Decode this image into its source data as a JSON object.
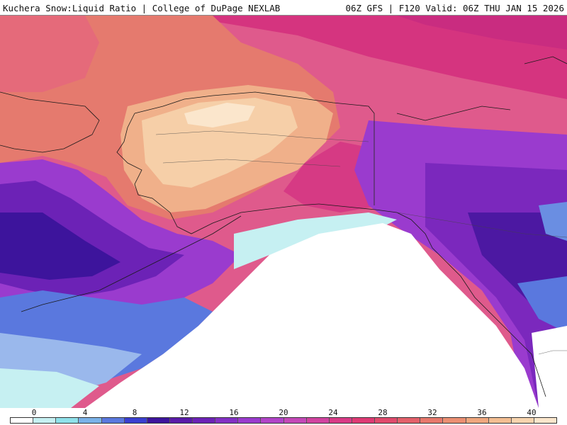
{
  "header": {
    "left_title": "Kuchera Snow:Liquid Ratio | College of DuPage NEXLAB",
    "right_title": "06Z GFS | F120 Valid: 06Z THU JAN 15 2026"
  },
  "legend": {
    "labels": [
      "0",
      "4",
      "8",
      "12",
      "16",
      "20",
      "24",
      "28",
      "32",
      "36",
      "40"
    ],
    "colors": [
      "#ffffff",
      "#c6f0f2",
      "#8fe1ea",
      "#7ab2e8",
      "#5a78de",
      "#3a3fd0",
      "#3d149c",
      "#5a1ba8",
      "#6c22b6",
      "#8330c4",
      "#9a3bce",
      "#b144c8",
      "#c448b8",
      "#d143a0",
      "#d93a86",
      "#de3a74",
      "#e04a6c",
      "#e3606a",
      "#e7786c",
      "#eb8f72",
      "#efa77e",
      "#f3be92",
      "#f7d4ae",
      "#fbe6cc"
    ]
  },
  "map": {
    "region": "Alaska and western Canada",
    "colors": {
      "ocean_clear": "#ffffff",
      "pink_north": "#e0588a",
      "magenta": "#d93a86",
      "salmon": "#e6846e",
      "peach": "#f3bf94",
      "pale_peach": "#f9dcbc",
      "purple": "#8a32c6",
      "deep_purple": "#4c18a2",
      "blue": "#5a78de",
      "light_blue": "#9ab8ec",
      "cyan": "#c6f0f2",
      "border_line": "#1a1a1a"
    }
  }
}
